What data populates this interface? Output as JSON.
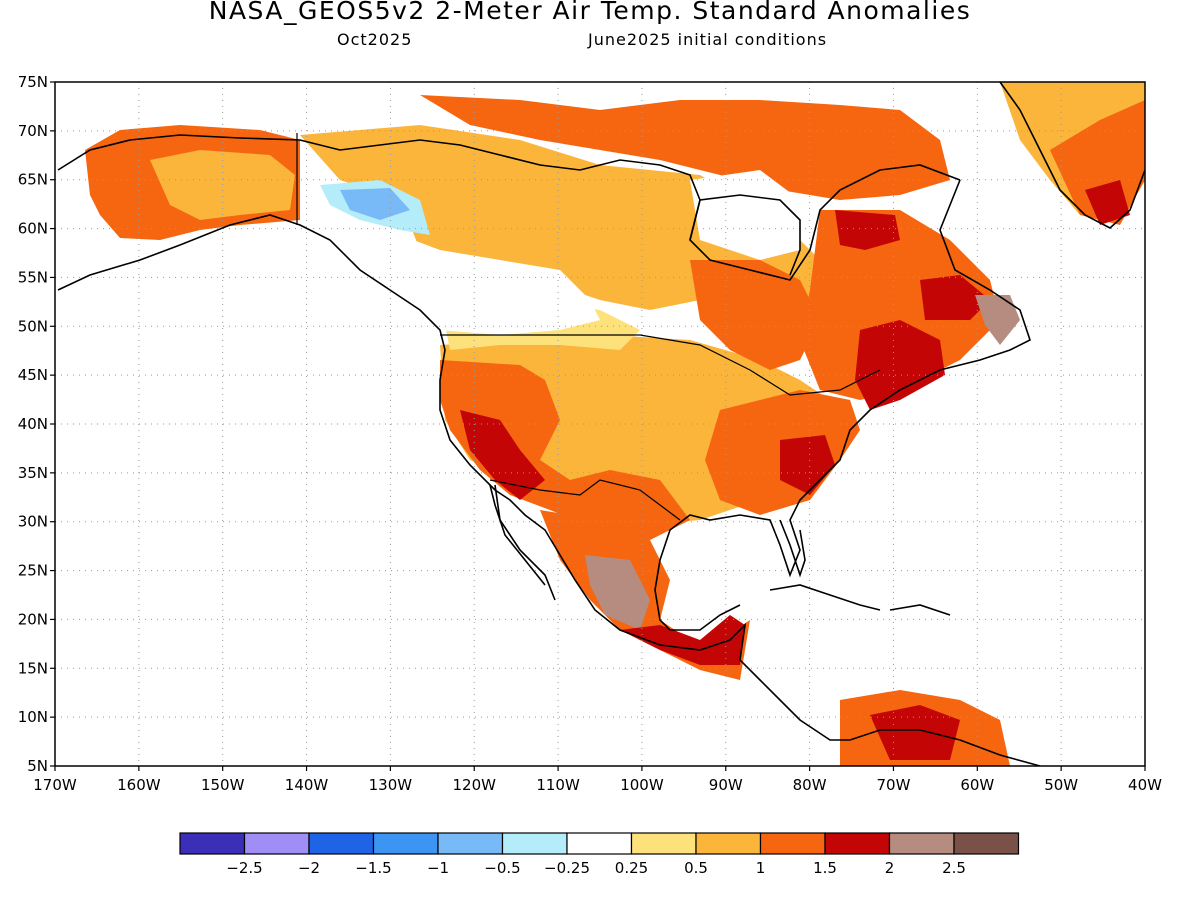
{
  "title": "NASA_GEOS5v2 2-Meter Air Temp. Standard Anomalies",
  "subtitle_left": "Oct2025",
  "subtitle_right": "June2025 initial conditions",
  "lat_labels": [
    "75N",
    "70N",
    "65N",
    "60N",
    "55N",
    "50N",
    "45N",
    "40N",
    "35N",
    "30N",
    "25N",
    "20N",
    "15N",
    "10N",
    "5N"
  ],
  "lon_labels": [
    "170W",
    "160W",
    "150W",
    "140W",
    "130W",
    "120W",
    "110W",
    "100W",
    "90W",
    "80W",
    "70W",
    "60W",
    "50W",
    "40W"
  ],
  "legend": {
    "colors": [
      "#3b2fb8",
      "#a08df5",
      "#1f63e6",
      "#3c95f2",
      "#78b9f7",
      "#b4ecf9",
      "#ffffff",
      "#fde17a",
      "#fbb53a",
      "#f6650f",
      "#c40505",
      "#b68c80",
      "#7a5148"
    ],
    "labels": [
      "-2.5",
      "-2",
      "-1.5",
      "-1",
      "-0.5",
      "-0.25",
      "0.25",
      "0.5",
      "1",
      "1.5",
      "2",
      "2.5"
    ]
  },
  "map_colors": {
    "anom_025_05": "#fde17a",
    "anom_05_1": "#fbb53a",
    "anom_1_15": "#f6650f",
    "anom_15_2": "#c40505",
    "anom_2_25": "#b68c80",
    "anom_neg_05": "#78b9f7",
    "anom_neg_025": "#b4ecf9",
    "coast": "#000000",
    "grid": "#9a9a9a"
  }
}
